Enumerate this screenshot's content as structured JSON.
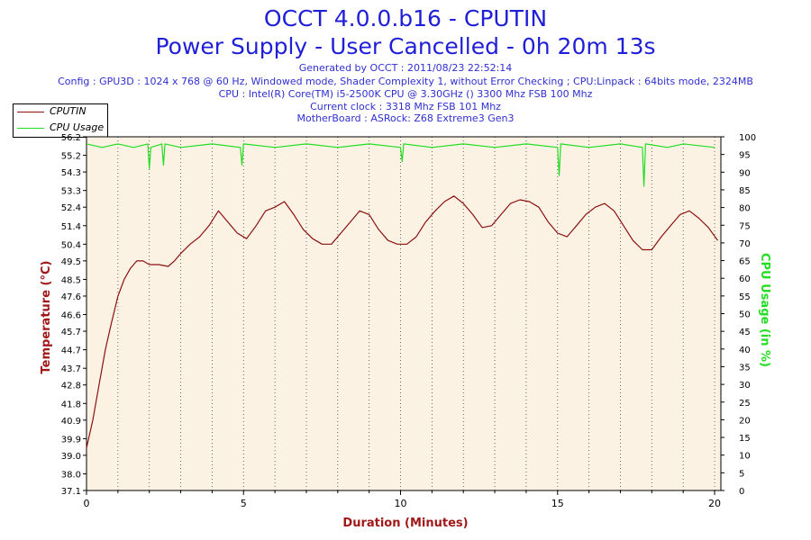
{
  "title": {
    "line1": "OCCT 4.0.0.b16 - CPUTIN",
    "line2": "Power Supply - User Cancelled - 0h 20m 13s"
  },
  "info": {
    "generated": "Generated by OCCT : 2011/08/23 22:52:14",
    "config": "Config : GPU3D : 1024 x 768 @ 60 Hz, Windowed mode, Shader Complexity 1, without Error Checking ; CPU:Linpack : 64bits mode, 2324MB",
    "cpu": "CPU : Intel(R) Core(TM) i5-2500K CPU @ 3.30GHz () 3300 Mhz FSB 100 Mhz",
    "clock": "Current clock : 3318 Mhz FSB 101 Mhz",
    "motherboard": "MotherBoard : ASRock: Z68 Extreme3 Gen3"
  },
  "colors": {
    "temperature": "#8b1010",
    "cpu_usage": "#22dd22",
    "plot_bg": "#fbf2e4",
    "title": "#1f1fd8"
  },
  "chart_data": {
    "type": "line",
    "xlabel": "Duration (Minutes)",
    "ylabel_left": "Temperature (°C)",
    "ylabel_right": "CPU Usage (in %)",
    "xlim": [
      0,
      20.2
    ],
    "ylim_left": [
      37.1,
      56.2
    ],
    "ylim_right": [
      0,
      100
    ],
    "x_ticks": [
      "0",
      "5",
      "10",
      "15",
      "20"
    ],
    "y_ticks_left": [
      "37.1",
      "38.0",
      "39.0",
      "39.9",
      "40.9",
      "41.8",
      "42.8",
      "43.7",
      "44.7",
      "45.7",
      "46.6",
      "47.6",
      "48.5",
      "49.5",
      "50.4",
      "51.4",
      "52.4",
      "53.3",
      "54.3",
      "55.2",
      "56.2"
    ],
    "y_ticks_right": [
      "0",
      "5",
      "10",
      "15",
      "20",
      "25",
      "30",
      "35",
      "40",
      "45",
      "50",
      "55",
      "60",
      "65",
      "70",
      "75",
      "80",
      "85",
      "90",
      "95",
      "100"
    ],
    "grid": "vertical dotted",
    "legend_position": "top-left",
    "series": [
      {
        "name": "CPUTIN",
        "axis": "left",
        "x": [
          0,
          0.2,
          0.4,
          0.6,
          0.8,
          1.0,
          1.2,
          1.4,
          1.6,
          1.8,
          2.0,
          2.3,
          2.6,
          2.8,
          3.0,
          3.3,
          3.6,
          3.9,
          4.2,
          4.5,
          4.8,
          5.1,
          5.4,
          5.7,
          6.0,
          6.3,
          6.6,
          6.9,
          7.2,
          7.5,
          7.8,
          8.1,
          8.4,
          8.7,
          9.0,
          9.3,
          9.6,
          9.9,
          10.2,
          10.5,
          10.8,
          11.1,
          11.4,
          11.7,
          12.0,
          12.3,
          12.6,
          12.9,
          13.2,
          13.5,
          13.8,
          14.1,
          14.4,
          14.7,
          15.0,
          15.3,
          15.6,
          15.9,
          16.2,
          16.5,
          16.8,
          17.1,
          17.4,
          17.7,
          18.0,
          18.3,
          18.6,
          18.9,
          19.2,
          19.5,
          19.8,
          20.1
        ],
        "y": [
          39.4,
          40.9,
          42.8,
          44.7,
          46.2,
          47.6,
          48.5,
          49.1,
          49.5,
          49.5,
          49.3,
          49.3,
          49.2,
          49.5,
          49.9,
          50.4,
          50.8,
          51.4,
          52.2,
          51.6,
          51.0,
          50.7,
          51.4,
          52.2,
          52.4,
          52.7,
          52.0,
          51.2,
          50.7,
          50.4,
          50.4,
          51.0,
          51.6,
          52.2,
          52.0,
          51.2,
          50.6,
          50.4,
          50.4,
          50.8,
          51.6,
          52.2,
          52.7,
          53.0,
          52.6,
          52.0,
          51.3,
          51.4,
          52.0,
          52.6,
          52.8,
          52.7,
          52.4,
          51.6,
          51.0,
          50.8,
          51.4,
          52.0,
          52.4,
          52.6,
          52.2,
          51.4,
          50.6,
          50.1,
          50.1,
          50.8,
          51.4,
          52.0,
          52.2,
          51.8,
          51.3,
          50.6
        ]
      },
      {
        "name": "CPU Usage",
        "axis": "right",
        "x": [
          0,
          0.5,
          1.0,
          1.5,
          1.95,
          2.0,
          2.05,
          2.4,
          2.45,
          2.5,
          3.0,
          4.0,
          4.9,
          4.95,
          5.0,
          6.0,
          7.0,
          8.0,
          9.0,
          10.0,
          10.05,
          10.1,
          11.0,
          12.0,
          13.0,
          14.0,
          15.0,
          15.05,
          15.1,
          16.0,
          17.0,
          17.7,
          17.75,
          17.8,
          18.5,
          19.0,
          20.0
        ],
        "y": [
          98,
          97,
          98,
          97,
          98,
          91,
          97,
          98,
          92,
          98,
          97,
          98,
          97,
          92,
          98,
          97,
          98,
          97,
          98,
          97,
          93,
          98,
          97,
          98,
          97,
          98,
          97,
          89,
          98,
          97,
          98,
          97,
          86,
          98,
          97,
          98,
          97
        ]
      }
    ]
  }
}
